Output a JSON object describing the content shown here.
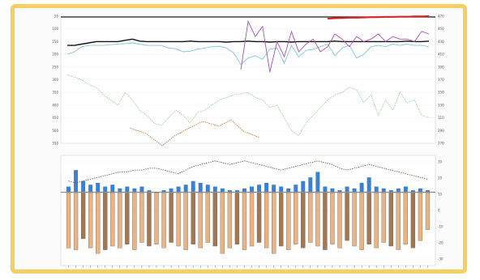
{
  "colors": {
    "frame": "#f6cf63",
    "black_series": "#111111",
    "cyan_series": "#7ec8d6",
    "purple_series": "#a84fb5",
    "red_series": "#e02020",
    "green_series": "#6fbf73",
    "orange_series": "#c67a3a",
    "positive_bar": "#3d7fd0",
    "negative_bar": "#e8b485",
    "negative_bar_dark": "#a07854"
  },
  "chart_data": [
    {
      "type": "line",
      "title": "",
      "xlabel": "",
      "ylabel": "",
      "y_left_ticks": [
        "50",
        "100",
        "150",
        "200",
        "250",
        "300",
        "350",
        "400",
        "450",
        "500",
        "550"
      ],
      "y_right_ticks": [
        "470",
        "450",
        "430",
        "410",
        "390",
        "370",
        "350",
        "330",
        "310",
        "290",
        "270"
      ],
      "grid": true,
      "x_range": [
        0,
        100
      ],
      "series": [
        {
          "color": "#111111",
          "y": [
            165,
            165,
            160,
            155,
            150,
            150,
            150,
            150,
            145,
            140,
            148,
            150,
            150,
            150,
            150,
            150,
            150,
            148,
            150,
            150,
            150,
            150,
            152,
            150,
            150,
            148,
            150,
            150,
            152,
            150,
            150,
            152,
            150,
            150,
            150,
            150,
            150,
            148,
            150,
            150,
            150,
            150,
            150,
            150,
            150,
            150,
            150,
            148,
            150,
            150,
            148
          ]
        },
        {
          "color": "#7ec8d6",
          "y": [
            200,
            190,
            170,
            165,
            165,
            165,
            162,
            160,
            158,
            155,
            160,
            165,
            165,
            165,
            175,
            178,
            190,
            188,
            180,
            175,
            170,
            168,
            175,
            195,
            240,
            215,
            205,
            220,
            180,
            175,
            235,
            165,
            210,
            185,
            180,
            170,
            160,
            205,
            175,
            165,
            215,
            200,
            170,
            165,
            170,
            160,
            165,
            160,
            165,
            165,
            170
          ]
        },
        {
          "color": "#a84fb5",
          "y": [
            null,
            null,
            null,
            null,
            null,
            null,
            null,
            null,
            null,
            null,
            null,
            null,
            null,
            null,
            null,
            null,
            null,
            null,
            null,
            null,
            null,
            null,
            null,
            null,
            260,
            70,
            130,
            90,
            270,
            150,
            210,
            110,
            190,
            160,
            140,
            190,
            170,
            120,
            140,
            170,
            130,
            150,
            140,
            120,
            150,
            130,
            140,
            140,
            150,
            110,
            120
          ]
        },
        {
          "color": "#e02020",
          "y": [
            null,
            null,
            null,
            null,
            null,
            null,
            null,
            null,
            null,
            null,
            null,
            null,
            null,
            null,
            null,
            null,
            null,
            null,
            null,
            null,
            null,
            null,
            null,
            null,
            null,
            null,
            null,
            null,
            null,
            null,
            null,
            null,
            null,
            null,
            null,
            null,
            60,
            58,
            57,
            56,
            56,
            55,
            54,
            54,
            53,
            53,
            52,
            52,
            51,
            51,
            50
          ]
        },
        {
          "color": "#6fbf73",
          "y": [
            null,
            null,
            null,
            null,
            null,
            null,
            null,
            null,
            null,
            null,
            null,
            null,
            null,
            null,
            null,
            null,
            null,
            null,
            null,
            null,
            null,
            null,
            null,
            null,
            null,
            null,
            null,
            null,
            null,
            null,
            null,
            null,
            null,
            null,
            null,
            null,
            null,
            null,
            null,
            null,
            null,
            null,
            null,
            null,
            null,
            null,
            null,
            null,
            null,
            null,
            null
          ]
        },
        {
          "color": "#9ccf9e",
          "y": [
            280,
            290,
            300,
            320,
            330,
            360,
            380,
            400,
            350,
            380,
            420,
            440,
            470,
            480,
            450,
            420,
            440,
            470,
            430,
            420,
            400,
            380,
            370,
            360,
            355,
            350,
            370,
            380,
            410,
            400,
            450,
            500,
            520,
            470,
            440,
            410,
            380,
            360,
            350,
            330,
            340,
            390,
            360,
            440,
            380,
            420,
            350,
            390,
            380,
            440,
            450
          ]
        },
        {
          "color": "#c67a3a",
          "y": [
            null,
            null,
            null,
            null,
            null,
            null,
            null,
            null,
            null,
            null,
            null,
            null,
            null,
            null,
            null,
            null,
            null,
            null,
            null,
            null,
            null,
            null,
            null,
            null,
            null,
            null,
            null,
            null,
            null,
            null,
            null,
            null,
            null,
            null,
            null,
            null,
            null,
            null,
            null,
            null,
            null,
            null,
            null,
            null,
            null,
            null,
            null,
            null,
            null,
            null,
            null
          ]
        }
      ]
    },
    {
      "type": "bar",
      "title": "",
      "xlabel": "",
      "ylabel": "",
      "y_right_ticks": [
        "30",
        "20",
        "10",
        "0",
        "-10",
        "-20",
        "-30"
      ],
      "ylim": [
        -40,
        20
      ],
      "grid": true,
      "positive": [
        3,
        12,
        6,
        4,
        5,
        3,
        4,
        2,
        3,
        2,
        3,
        1,
        0,
        1,
        2,
        3,
        4,
        6,
        5,
        4,
        3,
        2,
        1,
        1,
        2,
        3,
        4,
        5,
        4,
        3,
        2,
        4,
        6,
        8,
        11,
        3,
        2,
        1,
        3,
        2,
        5,
        8,
        3,
        2,
        1,
        2,
        3,
        1,
        2,
        1
      ],
      "negative": [
        -30,
        -31,
        -25,
        -30,
        -33,
        -31,
        -29,
        -30,
        -28,
        -31,
        -27,
        -29,
        -28,
        -30,
        -27,
        -29,
        -31,
        -28,
        -30,
        -27,
        -29,
        -33,
        -30,
        -28,
        -31,
        -29,
        -27,
        -30,
        -33,
        -29,
        -31,
        -28,
        -30,
        -27,
        -29,
        -31,
        -28,
        -30,
        -26,
        -29,
        -31,
        -28,
        -30,
        -27,
        -29,
        -31,
        -28,
        -30,
        -26,
        -20
      ],
      "dotted_line": [
        6,
        5,
        6,
        7,
        8,
        9,
        10,
        11,
        11,
        12,
        12,
        13,
        13,
        12,
        11,
        10,
        12,
        14,
        15,
        16,
        17,
        16,
        15,
        16,
        17,
        16,
        15,
        14,
        13,
        12,
        13,
        14,
        15,
        16,
        17,
        16,
        15,
        13,
        12,
        13,
        14,
        15,
        14,
        13,
        12,
        11,
        10,
        9,
        8,
        7
      ]
    }
  ]
}
